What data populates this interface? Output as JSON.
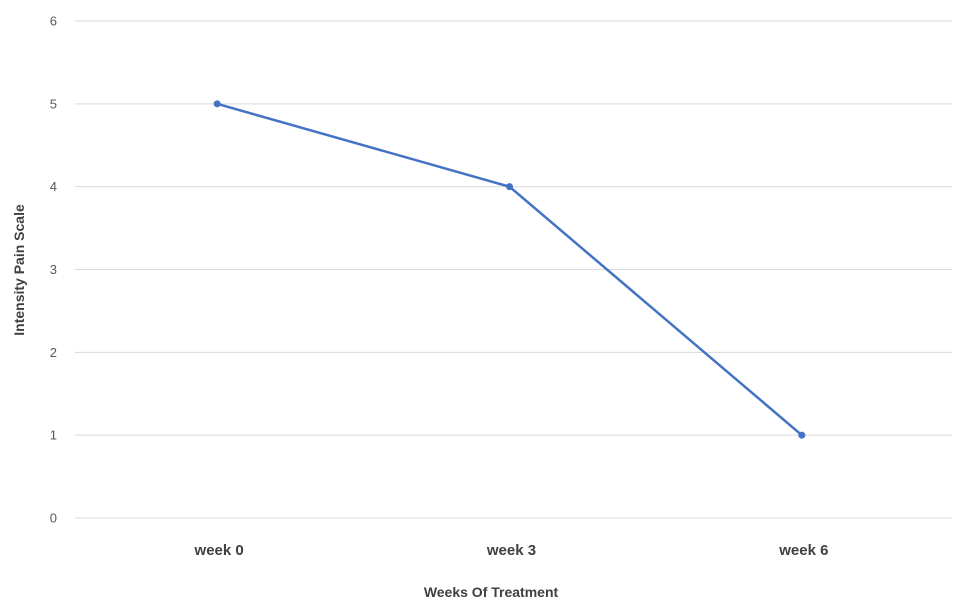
{
  "chart_data": {
    "type": "line",
    "categories": [
      "week 0",
      "week 3",
      "week 6"
    ],
    "series": [
      {
        "values": [
          5,
          4,
          1
        ]
      }
    ],
    "xlabel": "Weeks Of Treatment",
    "ylabel": "Intensity Pain Scale",
    "ylim": [
      0,
      6
    ],
    "yticks": [
      0,
      1,
      2,
      3,
      4,
      5,
      6
    ],
    "grid": true,
    "legend": "none",
    "colors": {
      "series": "#4472c4",
      "grid": "#d9d9d9",
      "tick_text": "#595959",
      "axis_title_text": "#404040"
    }
  }
}
